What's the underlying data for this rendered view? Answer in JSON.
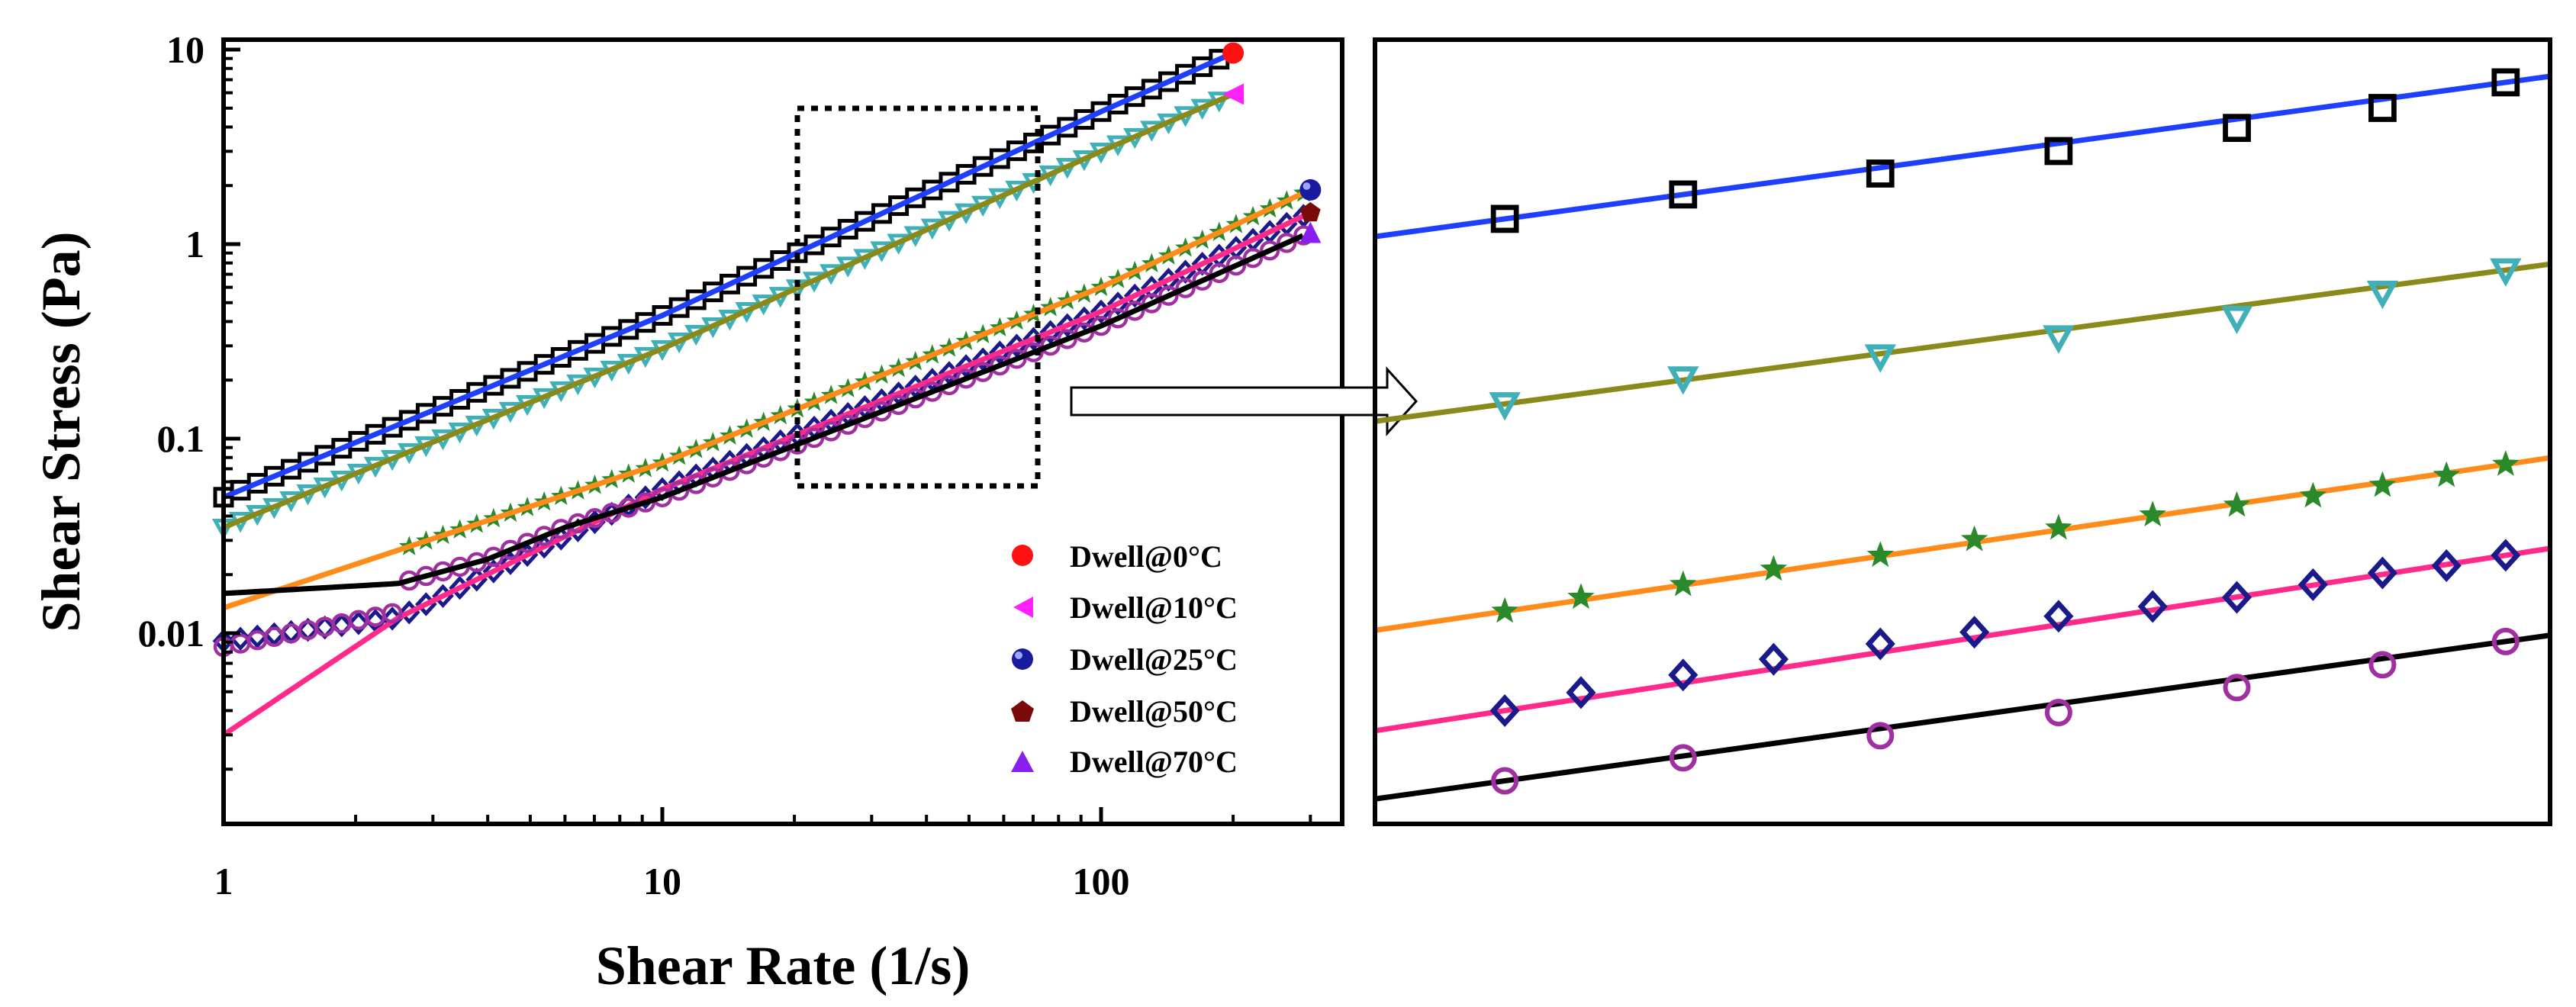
{
  "chart_data": [
    {
      "type": "line",
      "scale": "log-log",
      "title": "",
      "xlabel": "Shear Rate (1/s)",
      "ylabel": "Shear Stress (Pa)",
      "xlim": [
        1,
        320
      ],
      "ylim": [
        0.001,
        10
      ],
      "xticks": [
        {
          "v": 1,
          "label": "1"
        },
        {
          "v": 10,
          "label": "10"
        },
        {
          "v": 100,
          "label": "100"
        }
      ],
      "yticks": [
        {
          "v": 0.01,
          "label": "0.01"
        },
        {
          "v": 0.1,
          "label": "0.1"
        },
        {
          "v": 1,
          "label": "1"
        },
        {
          "v": 10,
          "label": "10"
        }
      ],
      "legend": {
        "placement": "bottom-right",
        "entries": [
          {
            "label": "Dwell@0°C",
            "marker": "circle",
            "color": "#ff1111"
          },
          {
            "label": "Dwell@10°C",
            "marker": "triangle-left",
            "color": "#ff22ff"
          },
          {
            "label": "Dwell@25°C",
            "marker": "sphere",
            "color": "#1a1a9e"
          },
          {
            "label": "Dwell@50°C",
            "marker": "pentagon",
            "color": "#7a0a0a"
          },
          {
            "label": "Dwell@70°C",
            "marker": "triangle-up",
            "color": "#8a1ef0"
          }
        ]
      },
      "zoom_region": {
        "x": [
          20,
          70
        ],
        "y": [
          0.06,
          5
        ]
      },
      "series": [
        {
          "name": "Dwell@0°C",
          "marker": "square",
          "marker_color": "#000000",
          "line_color": "#1f3fff",
          "x": [
            1,
            10,
            100,
            200
          ],
          "y": [
            0.05,
            0.43,
            4.8,
            9.6
          ],
          "end_marker": "circle",
          "end_color": "#ff1111"
        },
        {
          "name": "Dwell@10°C",
          "marker": "triangle-down",
          "marker_color": "#40b0b8",
          "line_color": "#8a8a1a",
          "x": [
            1,
            10,
            100,
            200
          ],
          "y": [
            0.035,
            0.29,
            3.0,
            5.9
          ],
          "end_marker": "triangle-left",
          "end_color": "#ff22ff"
        },
        {
          "name": "Dwell@25°C",
          "marker": "star",
          "marker_color": "#2a8a2a",
          "line_color": "#ff8c1a",
          "x": [
            1,
            10,
            100,
            300
          ],
          "y": [
            0.0135,
            0.075,
            0.6,
            1.9
          ],
          "end_marker": "sphere",
          "end_color": "#1a1a9e"
        },
        {
          "name": "Dwell@50°C",
          "marker": "diamond",
          "marker_color": "#1a1a8a",
          "line_color": "#ff2a8a",
          "x": [
            1,
            2.5,
            10,
            100,
            300
          ],
          "y": [
            0.003,
            0.012,
            0.055,
            0.45,
            1.45
          ],
          "end_marker": "pentagon",
          "end_color": "#7a0a0a"
        },
        {
          "name": "Dwell@70°C",
          "marker": "circle-open",
          "marker_color": "#a030a0",
          "line_color": "#000000",
          "x": [
            1,
            2.5,
            4,
            6,
            10,
            100,
            300
          ],
          "y": [
            0.016,
            0.018,
            0.024,
            0.035,
            0.05,
            0.38,
            1.15
          ],
          "end_marker": "triangle-up",
          "end_color": "#8a1ef0"
        }
      ]
    },
    {
      "type": "line",
      "title": "",
      "note": "Zoomed detail of dashed region (20–70 1/s)",
      "series": [
        {
          "name": "Dwell@0°C",
          "marker": "square",
          "marker_color": "#000000",
          "line_color": "#1f3fff",
          "x": [
            20,
            25,
            32,
            40,
            50,
            60,
            70
          ],
          "y": [
            2.2,
            2.6,
            3.0,
            3.5,
            4.1,
            4.7,
            5.6
          ]
        },
        {
          "name": "Dwell@10°C",
          "marker": "triangle-down",
          "marker_color": "#40b0b8",
          "line_color": "#8a8a1a",
          "x": [
            20,
            25,
            32,
            40,
            50,
            60,
            70
          ],
          "y": [
            0.62,
            0.74,
            0.86,
            0.98,
            1.12,
            1.33,
            1.55
          ]
        },
        {
          "name": "Dwell@25°C",
          "marker": "star",
          "marker_color": "#2a8a2a",
          "line_color": "#ff8c1a",
          "x": [
            20,
            22,
            25,
            28,
            32,
            36,
            40,
            45,
            50,
            55,
            60,
            65,
            70
          ],
          "y": [
            0.15,
            0.165,
            0.18,
            0.2,
            0.22,
            0.245,
            0.265,
            0.29,
            0.31,
            0.33,
            0.355,
            0.38,
            0.41
          ]
        },
        {
          "name": "Dwell@50°C",
          "marker": "diamond",
          "marker_color": "#1a1a8a",
          "line_color": "#ff2a8a",
          "x": [
            20,
            22,
            25,
            28,
            32,
            36,
            40,
            45,
            50,
            55,
            60,
            65,
            70
          ],
          "y": [
            0.076,
            0.086,
            0.097,
            0.108,
            0.12,
            0.13,
            0.145,
            0.155,
            0.165,
            0.18,
            0.195,
            0.205,
            0.22
          ]
        },
        {
          "name": "Dwell@70°C",
          "marker": "circle-open",
          "marker_color": "#a030a0",
          "line_color": "#000000",
          "x": [
            20,
            25,
            32,
            40,
            50,
            60,
            70
          ],
          "y": [
            0.047,
            0.055,
            0.064,
            0.075,
            0.089,
            0.104,
            0.122
          ]
        }
      ]
    }
  ]
}
